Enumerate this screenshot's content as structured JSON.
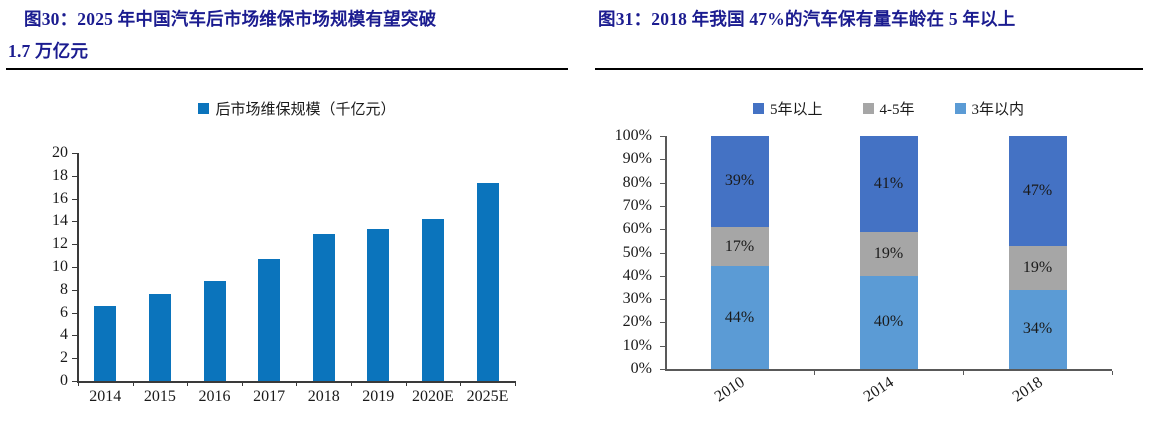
{
  "colors": {
    "title": "#1b1c90",
    "rule": "#000000",
    "axis_left": "#3a3a3a",
    "axis_right": "#595959",
    "text": "#1a1a1a",
    "bar_blue": "#0b74bc",
    "stack_dark_blue": "#4472c4",
    "stack_gray": "#a6a6a6",
    "stack_light_blue": "#5b9bd5"
  },
  "figures": [
    {
      "label": "图30",
      "title_lines": [
        "图30：2025 年中国汽车后市场维保市场规模有望突破",
        "1.7 万亿元"
      ],
      "chart_data": {
        "type": "bar",
        "title": "",
        "legend": [
          {
            "label": "后市场维保规模（千亿元）",
            "color": "#0b74bc"
          }
        ],
        "categories": [
          "2014",
          "2015",
          "2016",
          "2017",
          "2018",
          "2019",
          "2020E",
          "2025E"
        ],
        "values": [
          6.6,
          7.6,
          8.8,
          10.7,
          12.9,
          13.3,
          14.2,
          17.4
        ],
        "xlabel": "",
        "ylabel": "",
        "ylim": [
          0,
          20
        ],
        "ytick_step": 2,
        "ytick_suffix": "",
        "bar_color": "#0b74bc",
        "legend_position": "top",
        "grid": false
      }
    },
    {
      "label": "图31",
      "title_lines": [
        "图31：2018 年我国 47%的汽车保有量车龄在 5 年以上"
      ],
      "chart_data": {
        "type": "stacked-bar",
        "title": "",
        "categories": [
          "2010",
          "2014",
          "2018"
        ],
        "series": [
          {
            "name": "5年以上",
            "color": "#4472c4",
            "values": [
              39,
              41,
              47
            ]
          },
          {
            "name": "4-5年",
            "color": "#a6a6a6",
            "values": [
              17,
              19,
              19
            ]
          },
          {
            "name": "3年以内",
            "color": "#5b9bd5",
            "values": [
              44,
              40,
              34
            ]
          }
        ],
        "stack_bottom_to_top": [
          "3年以内",
          "4-5年",
          "5年以上"
        ],
        "data_labels": true,
        "data_label_suffix": "%",
        "xlabel": "",
        "ylabel": "",
        "ylim": [
          0,
          100
        ],
        "ytick_step": 10,
        "ytick_suffix": "%",
        "xtick_rotation": -33,
        "legend_position": "top",
        "grid": false
      }
    }
  ]
}
